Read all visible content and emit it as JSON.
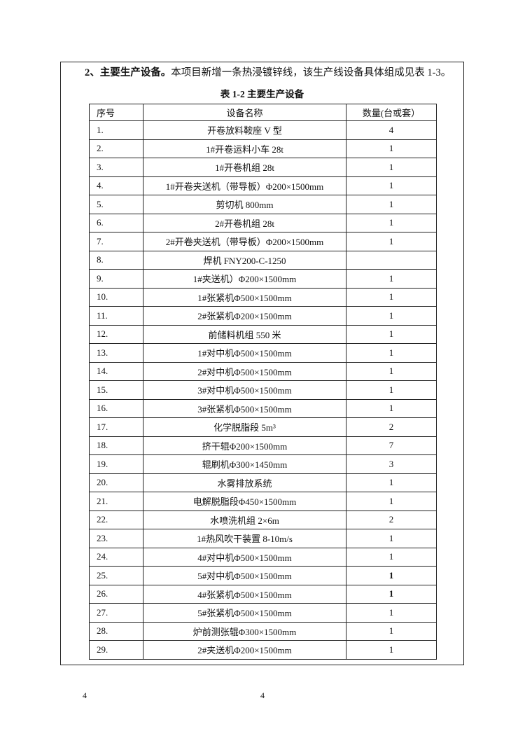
{
  "intro": {
    "bold": "2、主要生产设备。",
    "text": "本项目新增一条热浸镀锌线，该生产线设备具体组成见表 1-3。"
  },
  "caption": "表 1-2 主要生产设备",
  "headers": [
    "序号",
    "设备名称",
    "数量(台或套）"
  ],
  "rows": [
    [
      "1.",
      "开卷放料鞍座 V 型",
      "4"
    ],
    [
      "2.",
      "1#开卷运料小车 28t",
      "1"
    ],
    [
      "3.",
      "1#开卷机组 28t",
      "1"
    ],
    [
      "4.",
      "1#开卷夹送机（带导板）Φ200×1500mm",
      "1"
    ],
    [
      "5.",
      "剪切机 800mm",
      "1"
    ],
    [
      "6.",
      "2#开卷机组 28t",
      "1"
    ],
    [
      "7.",
      "2#开卷夹送机（带导板）Φ200×1500mm",
      "1"
    ],
    [
      "8.",
      "焊机 FNY200-C-1250",
      ""
    ],
    [
      "9.",
      "1#夹送机）Φ200×1500mm",
      "1"
    ],
    [
      "10.",
      "1#张紧机Φ500×1500mm",
      "1"
    ],
    [
      "11.",
      "2#张紧机Φ200×1500mm",
      "1"
    ],
    [
      "12.",
      "前储料机组 550 米",
      "1"
    ],
    [
      "13.",
      "1#对中机Φ500×1500mm",
      "1"
    ],
    [
      "14.",
      "2#对中机Φ500×1500mm",
      "1"
    ],
    [
      "15.",
      "3#对中机Φ500×1500mm",
      "1"
    ],
    [
      "16.",
      "3#张紧机Φ500×1500mm",
      "1"
    ],
    [
      "17.",
      "化学脱脂段 5m³",
      "2"
    ],
    [
      "18.",
      "挤干辊Φ200×1500mm",
      "7"
    ],
    [
      "19.",
      "辊刷机Φ300×1450mm",
      "3"
    ],
    [
      "20.",
      "水雾排放系统",
      "1"
    ],
    [
      "21.",
      "电解脱脂段Φ450×1500mm",
      "1"
    ],
    [
      "22.",
      "水喷洗机组 2×6m",
      "2"
    ],
    [
      "23.",
      "1#热风吹干装置 8-10m/s",
      "1"
    ],
    [
      "24.",
      "4#对中机Φ500×1500mm",
      "1"
    ],
    [
      "25.",
      "5#对中机Φ500×1500mm",
      "1"
    ],
    [
      "26.",
      "4#张紧机Φ500×1500mm",
      "1"
    ],
    [
      "27.",
      "5#张紧机Φ500×1500mm",
      "1"
    ],
    [
      "28.",
      "炉前测张辊Φ300×1500mm",
      "1"
    ],
    [
      "29.",
      "2#夹送机Φ200×1500mm",
      "1"
    ]
  ],
  "page_numbers": [
    "4",
    "4"
  ]
}
